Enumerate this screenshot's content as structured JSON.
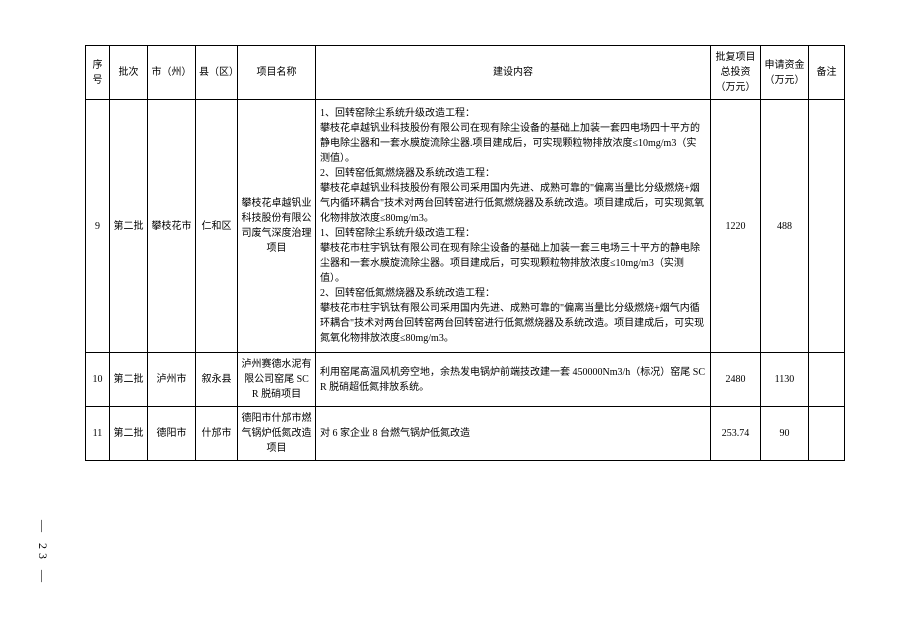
{
  "page_number": "— 23 —",
  "columns": {
    "seq": "序号",
    "batch": "批次",
    "city": "市（州）",
    "county": "县（区）",
    "project": "项目名称",
    "content": "建设内容",
    "investment": "批复项目总投资（万元）",
    "funding": "申请资金（万元）",
    "remark": "备注"
  },
  "col_widths": [
    "24",
    "38",
    "48",
    "42",
    "78",
    "310",
    "50",
    "48",
    "36"
  ],
  "rows": [
    {
      "seq": "9",
      "batch": "第二批",
      "city": "攀枝花市",
      "county": "仁和区",
      "project": "攀枝花卓越钒业科技股份有限公司废气深度治理项目",
      "content": "1、回转窑除尘系统升级改造工程：\n攀枝花卓越钒业科技股份有限公司在现有除尘设备的基础上加装一套四电场四十平方的静电除尘器和一套水膜旋流除尘器.项目建成后，可实现颗粒物排放浓度≤10mg/m3（实测值）。\n2、回转窑低氮燃烧器及系统改造工程：\n攀枝花卓越钒业科技股份有限公司采用国内先进、成熟可靠的\"偏离当量比分级燃烧+烟气内循环耦合\"技术对两台回转窑进行低氮燃烧器及系统改造。项目建成后，可实现氮氧化物排放浓度≤80mg/m3。\n1、回转窑除尘系统升级改造工程：\n攀枝花市柱宇钒钛有限公司在现有除尘设备的基础上加装一套三电场三十平方的静电除尘器和一套水膜旋流除尘器。项目建成后，可实现颗粒物排放浓度≤10mg/m3（实测值）。\n2、回转窑低氮燃烧器及系统改造工程：\n攀枝花市柱宇钒钛有限公司采用国内先进、成熟可靠的\"偏离当量比分级燃烧+烟气内循环耦合\"技术对两台回转窑两台回转窑进行低氮燃烧器及系统改造。项目建成后，可实现氮氧化物排放浓度≤80mg/m3。",
      "investment": "1220",
      "funding": "488",
      "remark": ""
    },
    {
      "seq": "10",
      "batch": "第二批",
      "city": "泸州市",
      "county": "叙永县",
      "project": "泸州赛德水泥有限公司窑尾 SCR 脱硝项目",
      "content": "利用窑尾高温风机旁空地，余热发电锅炉前端技改建一套 450000Nm3/h（标况）窑尾 SCR 脱硝超低氮排放系统。",
      "investment": "2480",
      "funding": "1130",
      "remark": ""
    },
    {
      "seq": "11",
      "batch": "第二批",
      "city": "德阳市",
      "county": "什邡市",
      "project": "德阳市什邡市燃气锅炉低氮改造项目",
      "content": "对 6 家企业 8 台燃气锅炉低氮改造",
      "investment": "253.74",
      "funding": "90",
      "remark": ""
    }
  ]
}
